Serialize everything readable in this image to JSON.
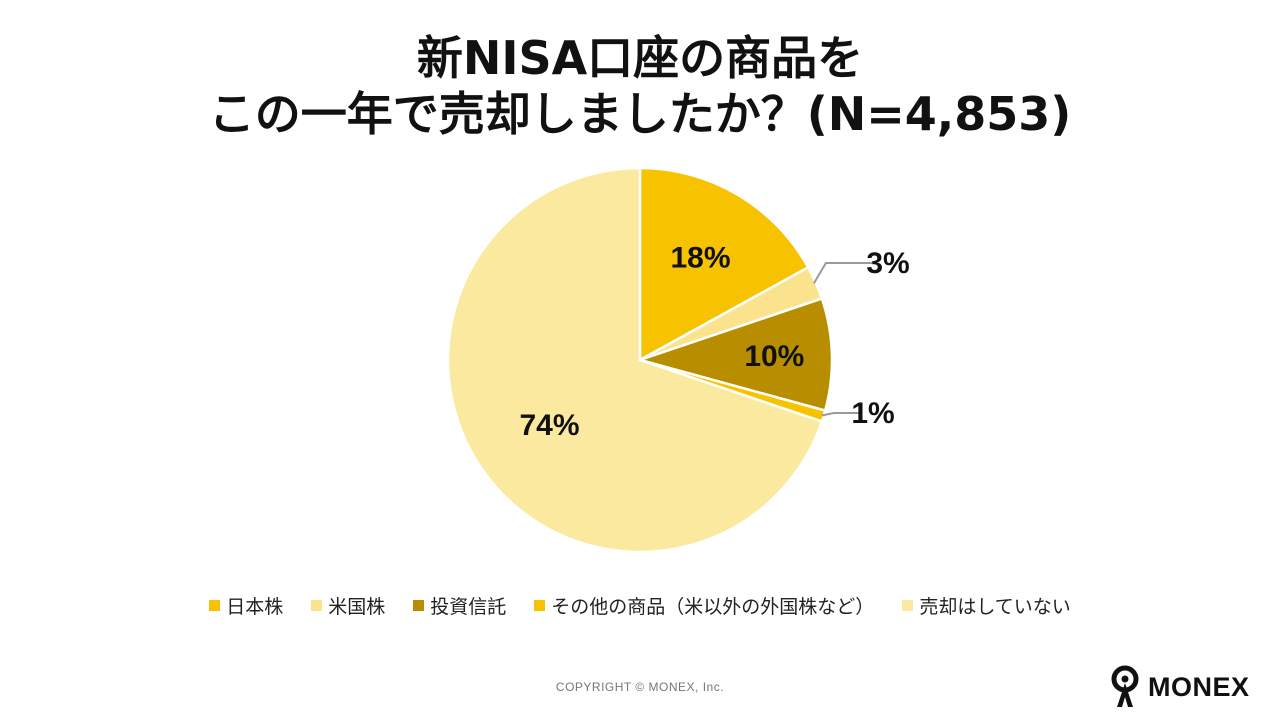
{
  "title": {
    "line1": "新NISA口座の商品を",
    "line2": "この一年で売却しましたか？(N=4,853)"
  },
  "chart_data": {
    "type": "pie",
    "title": "新NISA口座の商品を この一年で売却しましたか？(N=4,853)",
    "start": "12 o'clock, clockwise",
    "slices": [
      {
        "name": "日本株",
        "value": 18,
        "label": "18%",
        "color": "#F7C200"
      },
      {
        "name": "米国株",
        "value": 3,
        "label": "3%",
        "color": "#FBE38E"
      },
      {
        "name": "投資信託",
        "value": 10,
        "label": "10%",
        "color": "#B88E00"
      },
      {
        "name": "その他の商品（米以外の外国株など）",
        "value": 1,
        "label": "1%",
        "color": "#F7C200"
      },
      {
        "name": "売却はしていない",
        "value": 74,
        "label": "74%",
        "color": "#FCE9A0"
      }
    ],
    "legend_position": "bottom"
  },
  "footer": {
    "copyright": "COPYRIGHT © MONEX, Inc.",
    "logo": "MONEX"
  }
}
